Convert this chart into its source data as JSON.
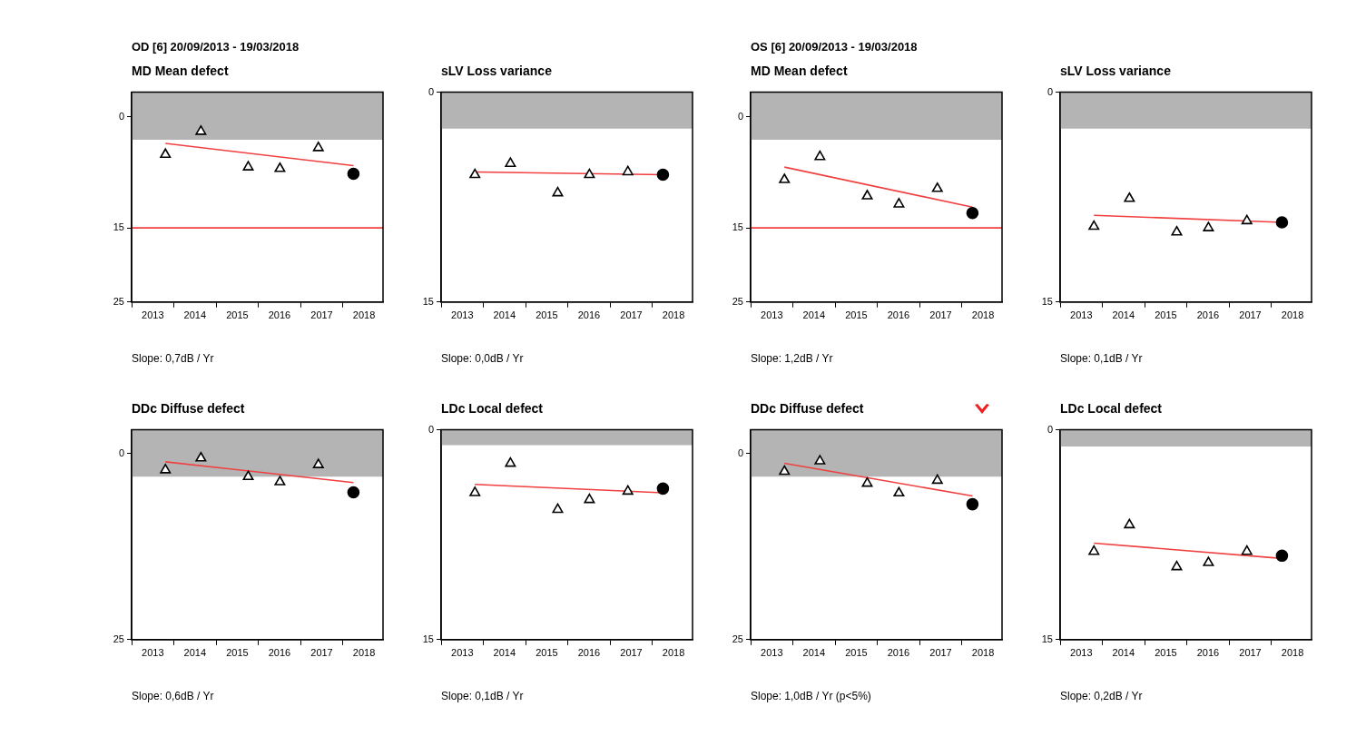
{
  "chart_data": [
    {
      "type": "scatter",
      "subtitle": "OD [6] 20/09/2013 - 19/03/2018",
      "title": "MD Mean defect",
      "annotations": [
        "Slope: 0,7dB / Yr"
      ],
      "x": [
        2013.8,
        2014.64,
        2015.76,
        2016.51,
        2017.42,
        2018.25
      ],
      "xlim": [
        2013,
        2018.95
      ],
      "xticks": [
        {
          "value": 2013,
          "label": null
        },
        {
          "value": 2013.5,
          "label": "2013"
        },
        {
          "value": 2014,
          "label": null
        },
        {
          "value": 2014.5,
          "label": "2014"
        },
        {
          "value": 2015,
          "label": null
        },
        {
          "value": 2015.5,
          "label": "2015"
        },
        {
          "value": 2016,
          "label": null
        },
        {
          "value": 2016.5,
          "label": "2016"
        },
        {
          "value": 2017,
          "label": null
        },
        {
          "value": 2017.5,
          "label": "2017"
        },
        {
          "value": 2018,
          "label": null
        },
        {
          "value": 2018.5,
          "label": "2018"
        }
      ],
      "ylim": [
        25,
        -3.3
      ],
      "yticks": [
        0,
        15,
        25
      ],
      "bands": [
        {
          "axis": "y",
          "from": -3.3,
          "to": 3.1,
          "color": "#b4b4b4"
        }
      ],
      "ref_lines": [
        {
          "axis": "y",
          "value": 15,
          "color": "#f04040"
        }
      ],
      "series": [
        {
          "type": "scatter",
          "marker": "triangle",
          "color": "#000000",
          "values": [
            5.1,
            2.0,
            6.8,
            7.0,
            4.2,
            null
          ]
        },
        {
          "type": "scatter",
          "marker": "circle",
          "color": "#000000",
          "values": [
            null,
            null,
            null,
            null,
            null,
            7.7
          ]
        },
        {
          "type": "line",
          "marker": "none",
          "color": "#f04040",
          "values": [
            3.6,
            null,
            null,
            null,
            null,
            6.6
          ]
        }
      ]
    },
    {
      "type": "scatter",
      "title": "sLV Loss variance",
      "annotations": [
        "Slope: 0,0dB / Yr"
      ],
      "x": [
        2013.8,
        2014.64,
        2015.76,
        2016.51,
        2017.42,
        2018.25
      ],
      "xlim": [
        2013,
        2018.95
      ],
      "xticks": [
        {
          "value": 2013,
          "label": null
        },
        {
          "value": 2013.5,
          "label": "2013"
        },
        {
          "value": 2014,
          "label": null
        },
        {
          "value": 2014.5,
          "label": "2014"
        },
        {
          "value": 2015,
          "label": null
        },
        {
          "value": 2015.5,
          "label": "2015"
        },
        {
          "value": 2016,
          "label": null
        },
        {
          "value": 2016.5,
          "label": "2016"
        },
        {
          "value": 2017,
          "label": null
        },
        {
          "value": 2017.5,
          "label": "2017"
        },
        {
          "value": 2018,
          "label": null
        },
        {
          "value": 2018.5,
          "label": "2018"
        }
      ],
      "ylim": [
        15,
        0
      ],
      "yticks": [
        0,
        15
      ],
      "bands": [
        {
          "axis": "y",
          "from": 0,
          "to": 2.6,
          "color": "#b4b4b4"
        }
      ],
      "series": [
        {
          "type": "scatter",
          "marker": "triangle",
          "color": "#000000",
          "values": [
            5.9,
            5.1,
            7.2,
            5.9,
            5.7,
            null
          ]
        },
        {
          "type": "scatter",
          "marker": "circle",
          "color": "#000000",
          "values": [
            null,
            null,
            null,
            null,
            null,
            5.9
          ]
        },
        {
          "type": "line",
          "marker": "none",
          "color": "#f04040",
          "values": [
            5.7,
            null,
            null,
            null,
            null,
            5.9
          ]
        }
      ]
    },
    {
      "type": "scatter",
      "subtitle": "OS [6] 20/09/2013 - 19/03/2018",
      "title": "MD Mean defect",
      "annotations": [
        "Slope: 1,2dB / Yr"
      ],
      "x": [
        2013.8,
        2014.64,
        2015.76,
        2016.51,
        2017.42,
        2018.25
      ],
      "xlim": [
        2013,
        2018.95
      ],
      "xticks": [
        {
          "value": 2013,
          "label": null
        },
        {
          "value": 2013.5,
          "label": "2013"
        },
        {
          "value": 2014,
          "label": null
        },
        {
          "value": 2014.5,
          "label": "2014"
        },
        {
          "value": 2015,
          "label": null
        },
        {
          "value": 2015.5,
          "label": "2015"
        },
        {
          "value": 2016,
          "label": null
        },
        {
          "value": 2016.5,
          "label": "2016"
        },
        {
          "value": 2017,
          "label": null
        },
        {
          "value": 2017.5,
          "label": "2017"
        },
        {
          "value": 2018,
          "label": null
        },
        {
          "value": 2018.5,
          "label": "2018"
        }
      ],
      "ylim": [
        25,
        -3.3
      ],
      "yticks": [
        0,
        15,
        25
      ],
      "bands": [
        {
          "axis": "y",
          "from": -3.3,
          "to": 3.1,
          "color": "#b4b4b4"
        }
      ],
      "ref_lines": [
        {
          "axis": "y",
          "value": 15,
          "color": "#f04040"
        }
      ],
      "series": [
        {
          "type": "scatter",
          "marker": "triangle",
          "color": "#000000",
          "values": [
            8.5,
            5.4,
            10.7,
            11.8,
            9.7,
            null
          ]
        },
        {
          "type": "scatter",
          "marker": "circle",
          "color": "#000000",
          "values": [
            null,
            null,
            null,
            null,
            null,
            13.0
          ]
        },
        {
          "type": "line",
          "marker": "none",
          "color": "#f04040",
          "values": [
            6.8,
            null,
            null,
            null,
            null,
            12.2
          ]
        }
      ]
    },
    {
      "type": "scatter",
      "title": "sLV Loss variance",
      "annotations": [
        "Slope: 0,1dB / Yr"
      ],
      "x": [
        2013.8,
        2014.64,
        2015.76,
        2016.51,
        2017.42,
        2018.25
      ],
      "xlim": [
        2013,
        2018.95
      ],
      "xticks": [
        {
          "value": 2013,
          "label": null
        },
        {
          "value": 2013.5,
          "label": "2013"
        },
        {
          "value": 2014,
          "label": null
        },
        {
          "value": 2014.5,
          "label": "2014"
        },
        {
          "value": 2015,
          "label": null
        },
        {
          "value": 2015.5,
          "label": "2015"
        },
        {
          "value": 2016,
          "label": null
        },
        {
          "value": 2016.5,
          "label": "2016"
        },
        {
          "value": 2017,
          "label": null
        },
        {
          "value": 2017.5,
          "label": "2017"
        },
        {
          "value": 2018,
          "label": null
        },
        {
          "value": 2018.5,
          "label": "2018"
        }
      ],
      "ylim": [
        15,
        0
      ],
      "yticks": [
        0,
        15
      ],
      "bands": [
        {
          "axis": "y",
          "from": 0,
          "to": 2.6,
          "color": "#b4b4b4"
        }
      ],
      "series": [
        {
          "type": "scatter",
          "marker": "triangle",
          "color": "#000000",
          "values": [
            9.6,
            7.6,
            10.0,
            9.7,
            9.2,
            null
          ]
        },
        {
          "type": "scatter",
          "marker": "circle",
          "color": "#000000",
          "values": [
            null,
            null,
            null,
            null,
            null,
            9.3
          ]
        },
        {
          "type": "line",
          "marker": "none",
          "color": "#f04040",
          "values": [
            8.8,
            null,
            null,
            null,
            null,
            9.3
          ]
        }
      ]
    },
    {
      "type": "scatter",
      "title": "DDc Diffuse defect",
      "annotations": [
        "Slope: 0,6dB / Yr"
      ],
      "x": [
        2013.8,
        2014.64,
        2015.76,
        2016.51,
        2017.42,
        2018.25
      ],
      "xlim": [
        2013,
        2018.95
      ],
      "xticks": [
        {
          "value": 2013,
          "label": null
        },
        {
          "value": 2013.5,
          "label": "2013"
        },
        {
          "value": 2014,
          "label": null
        },
        {
          "value": 2014.5,
          "label": "2014"
        },
        {
          "value": 2015,
          "label": null
        },
        {
          "value": 2015.5,
          "label": "2015"
        },
        {
          "value": 2016,
          "label": null
        },
        {
          "value": 2016.5,
          "label": "2016"
        },
        {
          "value": 2017,
          "label": null
        },
        {
          "value": 2017.5,
          "label": "2017"
        },
        {
          "value": 2018,
          "label": null
        },
        {
          "value": 2018.5,
          "label": "2018"
        }
      ],
      "ylim": [
        25,
        -3.2
      ],
      "yticks": [
        0,
        25
      ],
      "bands": [
        {
          "axis": "y",
          "from": -3.2,
          "to": 3.1,
          "color": "#b4b4b4"
        }
      ],
      "series": [
        {
          "type": "scatter",
          "marker": "triangle",
          "color": "#000000",
          "values": [
            2.2,
            0.6,
            3.1,
            3.8,
            1.5,
            null
          ]
        },
        {
          "type": "scatter",
          "marker": "circle",
          "color": "#000000",
          "values": [
            null,
            null,
            null,
            null,
            null,
            5.2
          ]
        },
        {
          "type": "line",
          "marker": "none",
          "color": "#f04040",
          "values": [
            1.1,
            null,
            null,
            null,
            null,
            3.9
          ]
        }
      ]
    },
    {
      "type": "scatter",
      "title": "LDc Local defect",
      "annotations": [
        "Slope: 0,1dB / Yr"
      ],
      "x": [
        2013.8,
        2014.64,
        2015.76,
        2016.51,
        2017.42,
        2018.25
      ],
      "xlim": [
        2013,
        2018.95
      ],
      "xticks": [
        {
          "value": 2013,
          "label": null
        },
        {
          "value": 2013.5,
          "label": "2013"
        },
        {
          "value": 2014,
          "label": null
        },
        {
          "value": 2014.5,
          "label": "2014"
        },
        {
          "value": 2015,
          "label": null
        },
        {
          "value": 2015.5,
          "label": "2015"
        },
        {
          "value": 2016,
          "label": null
        },
        {
          "value": 2016.5,
          "label": "2016"
        },
        {
          "value": 2017,
          "label": null
        },
        {
          "value": 2017.5,
          "label": "2017"
        },
        {
          "value": 2018,
          "label": null
        },
        {
          "value": 2018.5,
          "label": "2018"
        }
      ],
      "ylim": [
        15,
        0
      ],
      "yticks": [
        0,
        15
      ],
      "bands": [
        {
          "axis": "y",
          "from": 0,
          "to": 1.1,
          "color": "#b4b4b4"
        }
      ],
      "series": [
        {
          "type": "scatter",
          "marker": "triangle",
          "color": "#000000",
          "values": [
            4.5,
            2.4,
            5.7,
            5.0,
            4.4,
            null
          ]
        },
        {
          "type": "scatter",
          "marker": "circle",
          "color": "#000000",
          "values": [
            null,
            null,
            null,
            null,
            null,
            4.2
          ]
        },
        {
          "type": "line",
          "marker": "none",
          "color": "#f04040",
          "values": [
            3.9,
            null,
            null,
            null,
            null,
            4.5
          ]
        }
      ]
    },
    {
      "type": "scatter",
      "title": "DDc Diffuse defect",
      "annotations": [
        "Slope: 1,0dB / Yr (p<5%)"
      ],
      "x": [
        2013.8,
        2014.64,
        2015.76,
        2016.51,
        2017.42,
        2018.25
      ],
      "xlim": [
        2013,
        2018.95
      ],
      "xticks": [
        {
          "value": 2013,
          "label": null
        },
        {
          "value": 2013.5,
          "label": "2013"
        },
        {
          "value": 2014,
          "label": null
        },
        {
          "value": 2014.5,
          "label": "2014"
        },
        {
          "value": 2015,
          "label": null
        },
        {
          "value": 2015.5,
          "label": "2015"
        },
        {
          "value": 2016,
          "label": null
        },
        {
          "value": 2016.5,
          "label": "2016"
        },
        {
          "value": 2017,
          "label": null
        },
        {
          "value": 2017.5,
          "label": "2017"
        },
        {
          "value": 2018,
          "label": null
        },
        {
          "value": 2018.5,
          "label": "2018"
        }
      ],
      "ylim": [
        25,
        -3.2
      ],
      "yticks": [
        0,
        25
      ],
      "bands": [
        {
          "axis": "y",
          "from": -3.2,
          "to": 3.1,
          "color": "#b4b4b4"
        }
      ],
      "series": [
        {
          "type": "scatter",
          "marker": "triangle",
          "color": "#000000",
          "values": [
            2.4,
            1.0,
            4.0,
            5.3,
            3.6,
            null
          ]
        },
        {
          "type": "scatter",
          "marker": "circle",
          "color": "#000000",
          "values": [
            null,
            null,
            null,
            null,
            null,
            6.8
          ]
        },
        {
          "type": "line",
          "marker": "none",
          "color": "#f04040",
          "values": [
            1.3,
            null,
            null,
            null,
            null,
            5.7
          ]
        }
      ]
    },
    {
      "type": "scatter",
      "title": "LDc Local defect",
      "annotations": [
        "Slope: 0,2dB / Yr"
      ],
      "x": [
        2013.8,
        2014.64,
        2015.76,
        2016.51,
        2017.42,
        2018.25
      ],
      "xlim": [
        2013,
        2018.95
      ],
      "xticks": [
        {
          "value": 2013,
          "label": null
        },
        {
          "value": 2013.5,
          "label": "2013"
        },
        {
          "value": 2014,
          "label": null
        },
        {
          "value": 2014.5,
          "label": "2014"
        },
        {
          "value": 2015,
          "label": null
        },
        {
          "value": 2015.5,
          "label": "2015"
        },
        {
          "value": 2016,
          "label": null
        },
        {
          "value": 2016.5,
          "label": "2016"
        },
        {
          "value": 2017,
          "label": null
        },
        {
          "value": 2017.5,
          "label": "2017"
        },
        {
          "value": 2018,
          "label": null
        },
        {
          "value": 2018.5,
          "label": "2018"
        }
      ],
      "ylim": [
        15,
        0
      ],
      "yticks": [
        0,
        15
      ],
      "bands": [
        {
          "axis": "y",
          "from": 0,
          "to": 1.2,
          "color": "#b4b4b4"
        }
      ],
      "series": [
        {
          "type": "scatter",
          "marker": "triangle",
          "color": "#000000",
          "values": [
            8.7,
            6.8,
            9.8,
            9.5,
            8.7,
            null
          ]
        },
        {
          "type": "scatter",
          "marker": "circle",
          "color": "#000000",
          "values": [
            null,
            null,
            null,
            null,
            null,
            9.0
          ]
        },
        {
          "type": "line",
          "marker": "none",
          "color": "#f04040",
          "values": [
            8.1,
            null,
            null,
            null,
            null,
            9.2
          ]
        }
      ]
    }
  ]
}
